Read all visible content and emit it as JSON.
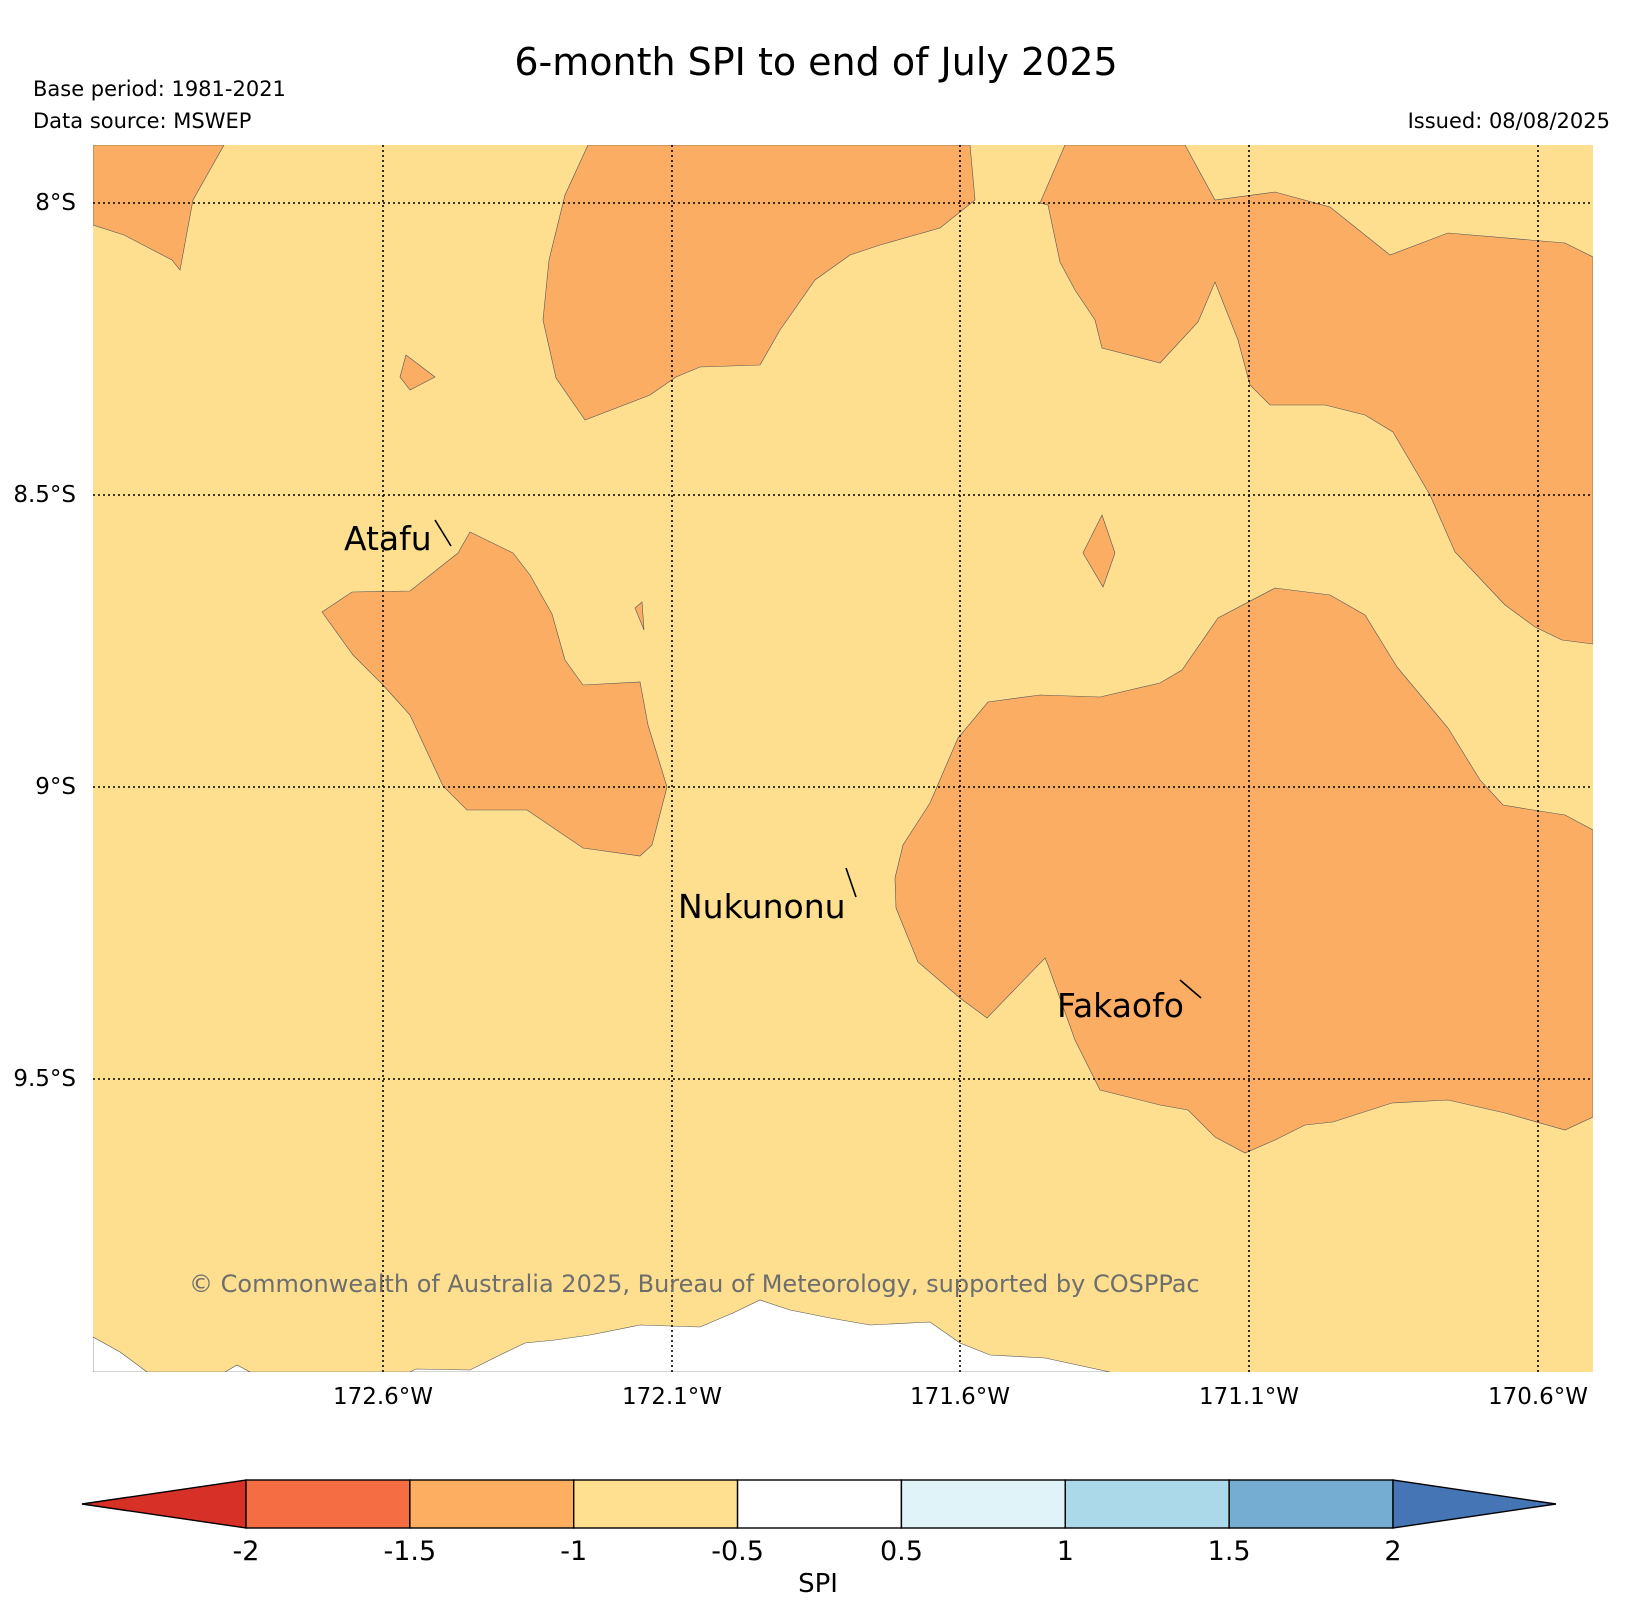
{
  "header": {
    "title": "6-month SPI to end of July 2025",
    "base_period": "Base period: 1981-2021",
    "data_source": "Data source: MSWEP",
    "issued": "Issued: 08/08/2025"
  },
  "map": {
    "latitude_labels": [
      "8°S",
      "8.5°S",
      "9°S",
      "9.5°S"
    ],
    "longitude_labels": [
      "172.6°W",
      "172.1°W",
      "171.6°W",
      "171.1°W",
      "170.6°W"
    ],
    "places": [
      "Atafu",
      "Nukunonu",
      "Fakaofo"
    ],
    "copyright": "© Commonwealth of Australia 2025, Bureau of Meteorology, supported by COSPPac",
    "colors": {
      "band_-1_-0.5": "#fddf8f",
      "band_-1.5_-1": "#fbae63",
      "no_data": "#ffffff"
    }
  },
  "colorbar": {
    "label": "SPI",
    "ticks": [
      "-2",
      "-1.5",
      "-1",
      "-0.5",
      "0.5",
      "1",
      "1.5",
      "2"
    ],
    "colors": [
      "#d73027",
      "#f46d43",
      "#fdae61",
      "#fee090",
      "#ffffff",
      "#e0f3f8",
      "#abd9e9",
      "#74add1",
      "#4575b4"
    ]
  }
}
